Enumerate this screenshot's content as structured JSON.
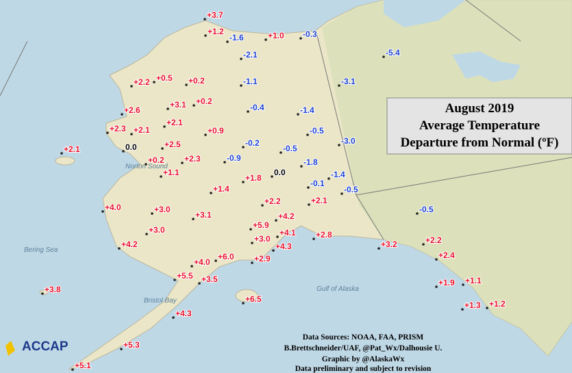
{
  "title": [
    "August 2019",
    "Average Temperature",
    "Departure from Normal (ºF)"
  ],
  "credits": [
    "Data Sources: NOAA, FAA, PRISM",
    "B.Brettschneider/UAF, @Pat_Wx/Dalhousie U.",
    "Graphic by @AlaskaWx",
    "Data preliminary and subject to revision"
  ],
  "logo": "ACCAP",
  "places": [
    "Bering Sea",
    "Norton Sound",
    "Bristol Bay",
    "Gulf of Alaska"
  ],
  "stations": [
    {
      "label": "+3.7",
      "color": "#e8102a"
    },
    {
      "label": "+1.2",
      "color": "#e8102a"
    },
    {
      "label": "-1.6",
      "color": "#1a3fd0"
    },
    {
      "label": "+1.0",
      "color": "#e8102a"
    },
    {
      "label": "-0.3",
      "color": "#1a3fd0"
    },
    {
      "label": "-5.4",
      "color": "#1a3fd0"
    },
    {
      "label": "-2.1",
      "color": "#1a3fd0"
    },
    {
      "label": "+0.5",
      "color": "#e8102a"
    },
    {
      "label": "+0.2",
      "color": "#e8102a"
    },
    {
      "label": "+2.2",
      "color": "#e8102a"
    },
    {
      "label": "-1.1",
      "color": "#1a3fd0"
    },
    {
      "label": "-3.1",
      "color": "#1a3fd0"
    },
    {
      "label": "+0.2",
      "color": "#e8102a"
    },
    {
      "label": "+3.1",
      "color": "#e8102a"
    },
    {
      "label": "+2.6",
      "color": "#e8102a"
    },
    {
      "label": "-0.4",
      "color": "#1a3fd0"
    },
    {
      "label": "-1.4",
      "color": "#1a3fd0"
    },
    {
      "label": "+2.1",
      "color": "#e8102a"
    },
    {
      "label": "+2.3",
      "color": "#e8102a"
    },
    {
      "label": "+2.1",
      "color": "#e8102a"
    },
    {
      "label": "+0.9",
      "color": "#e8102a"
    },
    {
      "label": "-0.5",
      "color": "#1a3fd0"
    },
    {
      "label": "+2.5",
      "color": "#e8102a"
    },
    {
      "label": "-0.2",
      "color": "#1a3fd0"
    },
    {
      "label": "-3.0",
      "color": "#1a3fd0"
    },
    {
      "label": "+2.1",
      "color": "#e8102a"
    },
    {
      "label": "0.0",
      "color": "#000000"
    },
    {
      "label": "-0.5",
      "color": "#1a3fd0"
    },
    {
      "label": "+0.2",
      "color": "#e8102a"
    },
    {
      "label": "+2.3",
      "color": "#e8102a"
    },
    {
      "label": "-0.9",
      "color": "#1a3fd0"
    },
    {
      "label": "-1.8",
      "color": "#1a3fd0"
    },
    {
      "label": "+1.1",
      "color": "#e8102a"
    },
    {
      "label": "0.0",
      "color": "#000000"
    },
    {
      "label": "-1.4",
      "color": "#1a3fd0"
    },
    {
      "label": "+1.8",
      "color": "#e8102a"
    },
    {
      "label": "-0.1",
      "color": "#1a3fd0"
    },
    {
      "label": "-0.5",
      "color": "#1a3fd0"
    },
    {
      "label": "+1.4",
      "color": "#e8102a"
    },
    {
      "label": "+2.2",
      "color": "#e8102a"
    },
    {
      "label": "+2.1",
      "color": "#e8102a"
    },
    {
      "label": "+4.0",
      "color": "#e8102a"
    },
    {
      "label": "+3.0",
      "color": "#e8102a"
    },
    {
      "label": "-0.5",
      "color": "#1a3fd0"
    },
    {
      "label": "+3.1",
      "color": "#e8102a"
    },
    {
      "label": "+4.2",
      "color": "#e8102a"
    },
    {
      "label": "+5.9",
      "color": "#e8102a"
    },
    {
      "label": "+3.0",
      "color": "#e8102a"
    },
    {
      "label": "+4.1",
      "color": "#e8102a"
    },
    {
      "label": "+2.8",
      "color": "#e8102a"
    },
    {
      "label": "+3.0",
      "color": "#e8102a"
    },
    {
      "label": "+2.2",
      "color": "#e8102a"
    },
    {
      "label": "+4.2",
      "color": "#e8102a"
    },
    {
      "label": "+4.3",
      "color": "#e8102a"
    },
    {
      "label": "+3.2",
      "color": "#e8102a"
    },
    {
      "label": "+6.0",
      "color": "#e8102a"
    },
    {
      "label": "+2.9",
      "color": "#e8102a"
    },
    {
      "label": "+2.4",
      "color": "#e8102a"
    },
    {
      "label": "+4.0",
      "color": "#e8102a"
    },
    {
      "label": "+5.5",
      "color": "#e8102a"
    },
    {
      "label": "+3.5",
      "color": "#e8102a"
    },
    {
      "label": "+1.9",
      "color": "#e8102a"
    },
    {
      "label": "+1.1",
      "color": "#e8102a"
    },
    {
      "label": "+3.8",
      "color": "#e8102a"
    },
    {
      "label": "+6.5",
      "color": "#e8102a"
    },
    {
      "label": "+1.3",
      "color": "#e8102a"
    },
    {
      "label": "+1.2",
      "color": "#e8102a"
    },
    {
      "label": "+4.3",
      "color": "#e8102a"
    },
    {
      "label": "+5.3",
      "color": "#e8102a"
    },
    {
      "label": "+5.1",
      "color": "#e8102a"
    }
  ]
}
